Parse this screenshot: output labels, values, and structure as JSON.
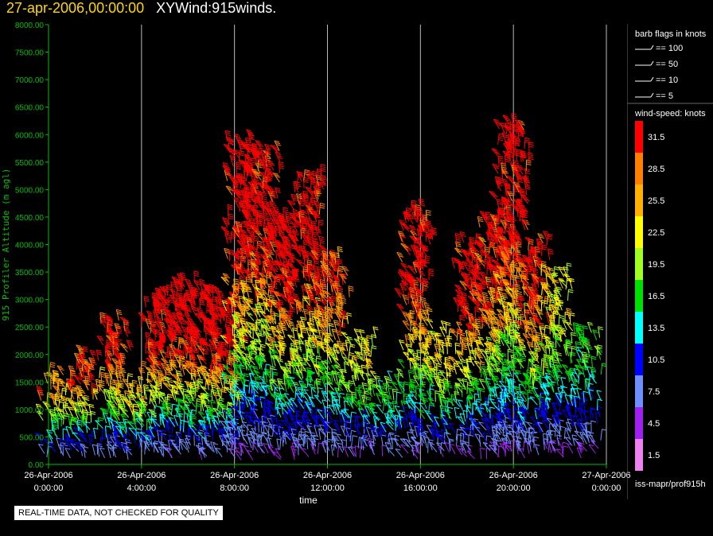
{
  "header": {
    "time": "27-apr-2006,00:00:00",
    "title": "XYWind:915winds."
  },
  "chart_data": {
    "type": "wind-barb",
    "title": "XYWind:915winds.",
    "xlabel": "time",
    "ylabel": "915 Profiler Altitude (m agl)",
    "x_ticks": [
      {
        "date": "26-Apr-2006",
        "time": "0:00:00"
      },
      {
        "date": "26-Apr-2006",
        "time": "4:00:00"
      },
      {
        "date": "26-Apr-2006",
        "time": "8:00:00"
      },
      {
        "date": "26-Apr-2006",
        "time": "12:00:00"
      },
      {
        "date": "26-Apr-2006",
        "time": "16:00:00"
      },
      {
        "date": "26-Apr-2006",
        "time": "20:00:00"
      },
      {
        "date": "27-Apr-2006",
        "time": "0:00:00"
      }
    ],
    "xlim_hours": [
      0,
      24
    ],
    "y_ticks": [
      "0.00",
      "500.00",
      "1000.00",
      "1500.00",
      "2000.00",
      "2500.00",
      "3000.00",
      "3500.00",
      "4000.00",
      "4500.00",
      "5000.00",
      "5500.00",
      "6000.00",
      "6500.00",
      "7000.00",
      "7500.00",
      "8000.00"
    ],
    "ylim": [
      0,
      8000
    ],
    "grid": "vertical",
    "profiles": [
      {
        "hour": 0.1,
        "top": 1600,
        "peak": 24
      },
      {
        "hour": 1.3,
        "top": 2000,
        "peak": 28
      },
      {
        "hour": 2.6,
        "top": 2600,
        "peak": 30
      },
      {
        "hour": 3.5,
        "top": 1400,
        "peak": 20
      },
      {
        "hour": 4.4,
        "top": 3000,
        "peak": 33
      },
      {
        "hour": 5.4,
        "top": 3300,
        "peak": 35
      },
      {
        "hour": 6.4,
        "top": 3200,
        "peak": 35
      },
      {
        "hour": 7.4,
        "top": 3000,
        "peak": 34
      },
      {
        "hour": 8.1,
        "top": 5900,
        "peak": 34
      },
      {
        "hour": 9.0,
        "top": 5700,
        "peak": 33
      },
      {
        "hour": 10.0,
        "top": 4500,
        "peak": 34
      },
      {
        "hour": 11.0,
        "top": 5200,
        "peak": 33
      },
      {
        "hour": 12.0,
        "top": 3800,
        "peak": 28
      },
      {
        "hour": 13.2,
        "top": 2300,
        "peak": 20
      },
      {
        "hour": 14.4,
        "top": 1500,
        "peak": 14
      },
      {
        "hour": 15.6,
        "top": 4600,
        "peak": 33
      },
      {
        "hour": 16.6,
        "top": 2400,
        "peak": 22
      },
      {
        "hour": 17.9,
        "top": 4000,
        "peak": 32
      },
      {
        "hour": 19.0,
        "top": 4500,
        "peak": 30
      },
      {
        "hour": 19.7,
        "top": 6200,
        "peak": 34
      },
      {
        "hour": 20.6,
        "top": 4000,
        "peak": 30
      },
      {
        "hour": 21.6,
        "top": 3500,
        "peak": 20
      },
      {
        "hour": 22.8,
        "top": 2400,
        "peak": 14
      }
    ]
  },
  "legend": {
    "barb_title": "barb flags in knots",
    "barb_items": [
      "== 100",
      "== 50",
      "== 10",
      "== 5"
    ],
    "speed_title": "wind-speed: knots",
    "speed_bins": [
      {
        "label": "31.5",
        "color": "#ff0000"
      },
      {
        "label": "28.5",
        "color": "#ff8000"
      },
      {
        "label": "25.5",
        "color": "#ffb000"
      },
      {
        "label": "22.5",
        "color": "#ffff00"
      },
      {
        "label": "19.5",
        "color": "#a0ff20"
      },
      {
        "label": "16.5",
        "color": "#00e000"
      },
      {
        "label": "13.5",
        "color": "#00ffff"
      },
      {
        "label": "10.5",
        "color": "#0000ff"
      },
      {
        "label": "7.5",
        "color": "#6f8fff"
      },
      {
        "label": "4.5",
        "color": "#a020f0"
      },
      {
        "label": "1.5",
        "color": "#ee82ee"
      }
    ],
    "source": "iss-mapr/prof915h"
  },
  "footer": {
    "quality_note": "REAL-TIME DATA, NOT CHECKED FOR QUALITY"
  },
  "colors": {
    "axis": "#00c000",
    "grid": "#bbbbbb",
    "text": "#ffffff",
    "header_time": "#ffd700"
  }
}
